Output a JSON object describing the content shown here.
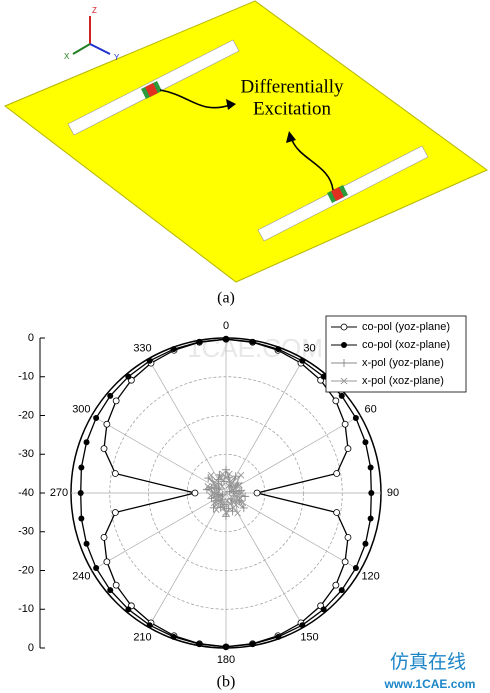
{
  "figure_a": {
    "axes": [
      "Z",
      "X",
      "Y"
    ],
    "annotation": [
      "Differentially",
      "Excitation"
    ],
    "caption": "(a)"
  },
  "chart_data": {
    "type": "polar",
    "caption": "(b)",
    "theta": [
      0,
      10,
      20,
      30,
      40,
      50,
      60,
      70,
      80,
      90,
      100,
      110,
      120,
      130,
      140,
      150,
      160,
      170,
      180,
      190,
      200,
      210,
      220,
      230,
      240,
      250,
      260,
      270,
      280,
      290,
      300,
      310,
      320,
      330,
      340,
      350
    ],
    "rlim": [
      -40,
      0
    ],
    "rticks": [
      -10,
      -20,
      -30
    ],
    "thetaticks": [
      0,
      30,
      60,
      90,
      120,
      150,
      180,
      210,
      240,
      270,
      300,
      330
    ],
    "yticks": [
      0,
      -10,
      -20,
      -30,
      -40,
      -30,
      -20,
      -10,
      0
    ],
    "grid": true,
    "legend": "upper right",
    "watermark": "1CAE.COM",
    "series": [
      {
        "name": "co-pol (yoz-plane)",
        "color": "#000000",
        "marker": "open-circle",
        "values": [
          -0.3,
          -0.5,
          -0.8,
          -1.3,
          -2,
          -3,
          -4.5,
          -6.5,
          -11,
          -32,
          -11,
          -6.5,
          -4.5,
          -3,
          -2,
          -1.3,
          -0.8,
          -0.5,
          -0.3,
          -0.5,
          -0.8,
          -1.3,
          -2,
          -3,
          -4.5,
          -6.5,
          -11,
          -32,
          -11,
          -6.5,
          -4.5,
          -3,
          -2,
          -1.3,
          -0.8,
          -0.5
        ]
      },
      {
        "name": "co-pol (xoz-plane)",
        "color": "#000000",
        "marker": "filled-circle",
        "values": [
          -0.3,
          -0.4,
          -0.5,
          -0.6,
          -0.8,
          -1,
          -1.3,
          -1.7,
          -2.1,
          -2.5,
          -2.1,
          -1.7,
          -1.3,
          -1,
          -0.8,
          -0.6,
          -0.5,
          -0.4,
          -0.3,
          -0.4,
          -0.5,
          -0.6,
          -0.8,
          -1,
          -1.3,
          -1.7,
          -2.1,
          -2.5,
          -2.1,
          -1.7,
          -1.3,
          -1,
          -0.8,
          -0.6,
          -0.5,
          -0.4
        ]
      },
      {
        "name": "x-pol (yoz-plane)",
        "color": "#888888",
        "marker": "plus",
        "values": [
          -34,
          -36,
          -37,
          -35,
          -38,
          -36,
          -37,
          -39,
          -36,
          -38,
          -35,
          -37,
          -36,
          -34,
          -38,
          -37,
          -35,
          -36,
          -34,
          -37,
          -36,
          -38,
          -35,
          -37,
          -39,
          -36,
          -38,
          -37,
          -35,
          -36,
          -38,
          -34,
          -37,
          -36,
          -35,
          -37
        ]
      },
      {
        "name": "x-pol (xoz-plane)",
        "color": "#999999",
        "marker": "cross",
        "values": [
          -36,
          -35,
          -38,
          -37,
          -34,
          -37,
          -36,
          -38,
          -37,
          -36,
          -38,
          -36,
          -35,
          -37,
          -36,
          -34,
          -37,
          -38,
          -35,
          -36,
          -37,
          -35,
          -38,
          -36,
          -37,
          -38,
          -36,
          -37,
          -38,
          -35,
          -37,
          -36,
          -34,
          -38,
          -36,
          -35
        ]
      }
    ]
  },
  "watermark": {
    "text": "仿真在线",
    "url": "www.1CAE.com"
  }
}
